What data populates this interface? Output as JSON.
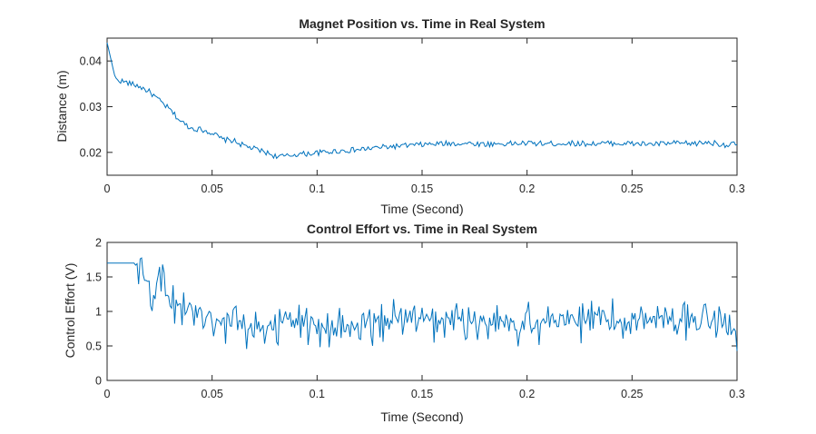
{
  "colors": {
    "line": "#0072BD",
    "axes": "#262626",
    "background": "#ffffff"
  },
  "chart_data": [
    {
      "type": "line",
      "title": "Magnet Position vs. Time in Real System",
      "xlabel": "Time (Second)",
      "ylabel": "Distance (m)",
      "xlim": [
        0,
        0.3
      ],
      "ylim": [
        0.015,
        0.045
      ],
      "xticks": [
        0,
        0.05,
        0.1,
        0.15,
        0.2,
        0.25,
        0.3
      ],
      "xtick_labels": [
        "0",
        "0.05",
        "0.1",
        "0.15",
        "0.2",
        "0.25",
        "0.3"
      ],
      "yticks": [
        0.02,
        0.03,
        0.04
      ],
      "ytick_labels": [
        "0.02",
        "0.03",
        "0.04"
      ],
      "grid": false,
      "series": [
        {
          "x": [
            0,
            0.002,
            0.004,
            0.01,
            0.015,
            0.02,
            0.025,
            0.03,
            0.035,
            0.04,
            0.045,
            0.05,
            0.055,
            0.06,
            0.065,
            0.07,
            0.075,
            0.08,
            0.085,
            0.09,
            0.095,
            0.1,
            0.11,
            0.12,
            0.13,
            0.14,
            0.15,
            0.16,
            0.17,
            0.18,
            0.19,
            0.2,
            0.21,
            0.22,
            0.23,
            0.24,
            0.25,
            0.26,
            0.27,
            0.28,
            0.285,
            0.29,
            0.295,
            0.3
          ],
          "y": [
            0.044,
            0.04,
            0.036,
            0.0352,
            0.0345,
            0.0333,
            0.0313,
            0.0293,
            0.0268,
            0.0253,
            0.025,
            0.0243,
            0.0228,
            0.0226,
            0.0215,
            0.0208,
            0.0201,
            0.0192,
            0.0191,
            0.0196,
            0.0197,
            0.0199,
            0.0203,
            0.0206,
            0.0211,
            0.0214,
            0.0217,
            0.0219,
            0.022,
            0.0218,
            0.0219,
            0.022,
            0.0219,
            0.022,
            0.0219,
            0.022,
            0.0219,
            0.0218,
            0.022,
            0.0219,
            0.0222,
            0.022,
            0.0216,
            0.0218
          ]
        }
      ]
    },
    {
      "type": "line",
      "title": "Control Effort vs. Time in Real System",
      "xlabel": "Time (Second)",
      "ylabel": "Control Effort (V)",
      "xlim": [
        0,
        0.3
      ],
      "ylim": [
        0,
        2
      ],
      "xticks": [
        0,
        0.05,
        0.1,
        0.15,
        0.2,
        0.25,
        0.3
      ],
      "xtick_labels": [
        "0",
        "0.05",
        "0.1",
        "0.15",
        "0.2",
        "0.25",
        "0.3"
      ],
      "yticks": [
        0,
        0.5,
        1,
        1.5,
        2
      ],
      "ytick_labels": [
        "0",
        "0.5",
        "1",
        "1.5",
        "2"
      ],
      "grid": false,
      "series": [
        {
          "x": [
            0,
            0.013,
            0.016,
            0.02,
            0.022,
            0.025,
            0.028,
            0.031,
            0.035,
            0.04,
            0.045,
            0.05,
            0.055,
            0.06,
            0.07,
            0.08,
            0.09,
            0.1,
            0.11,
            0.12,
            0.13,
            0.14,
            0.15,
            0.16,
            0.17,
            0.18,
            0.19,
            0.2,
            0.21,
            0.22,
            0.23,
            0.24,
            0.25,
            0.26,
            0.27,
            0.28,
            0.29,
            0.3
          ],
          "y": [
            1.7,
            1.7,
            1.55,
            1.4,
            1.2,
            1.5,
            1.25,
            1.05,
            1.1,
            1.0,
            1.05,
            0.95,
            0.8,
            0.85,
            0.75,
            0.8,
            0.85,
            0.8,
            0.75,
            0.75,
            0.85,
            0.9,
            0.85,
            0.85,
            0.9,
            0.85,
            0.9,
            0.8,
            0.85,
            0.85,
            0.9,
            0.85,
            0.85,
            0.95,
            0.9,
            0.9,
            0.85,
            0.75
          ],
          "noise_amplitude": 0.35
        }
      ]
    }
  ]
}
